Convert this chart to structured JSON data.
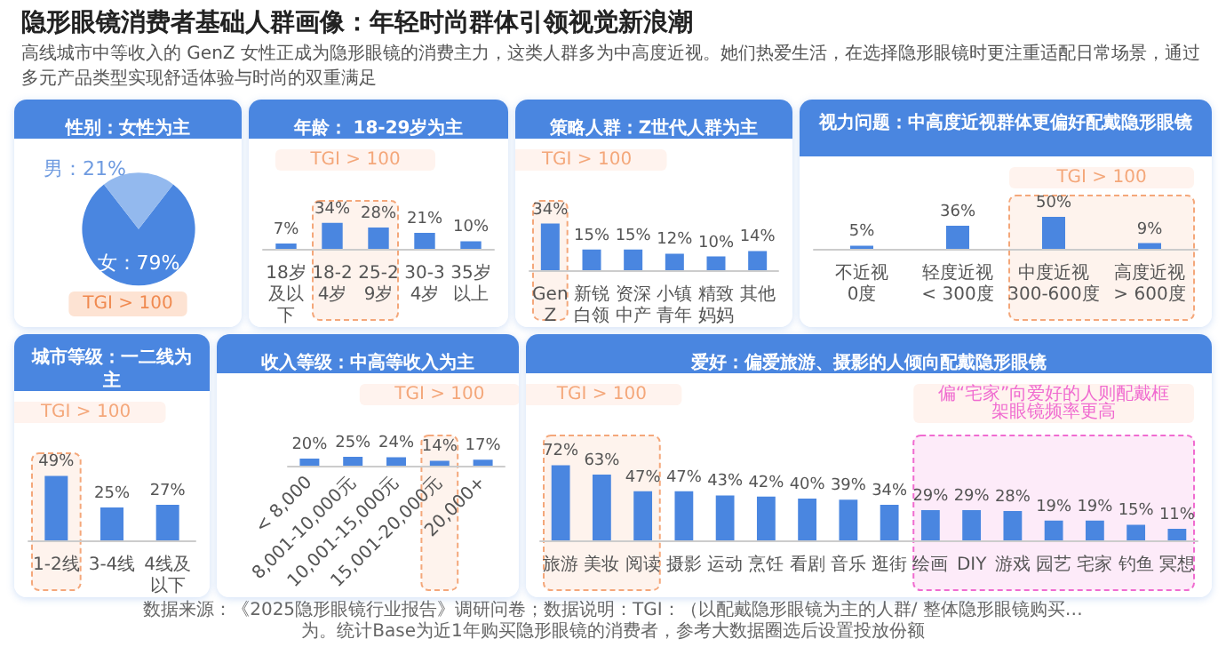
{
  "chart_data": [
    {
      "type": "other",
      "title": "隐形眼镜消费者基础人群画像：年轻时尚群体引领视觉新浪潮",
      "subtitle": "高线城市中等收入的 GenZ 女性正成为隐形眼镜的消费主力，这类人群多为中高度近视。她们热爱生活，在选择隐形眼镜时更注重适配日常场景，通过多元产品类型实现舒适体验与时尚的双重满足",
      "annotations": [
        "数据来源：《2025隐形眼镜行业报告》调研问卷；数据说明：TGI：（以配戴隐形眼镜为主的人群/ 整体隐形眼镜购买…",
        "为。统计Base为近1年购买隐形眼镜的消费者，参考大数据圈选后设置投放份额"
      ]
    },
    {
      "type": "pie",
      "title": "性别：女性为主",
      "categories": [
        "女",
        "男"
      ],
      "values": [
        79,
        21
      ],
      "colors": [
        "#4a86e0",
        "#93b9ee"
      ],
      "value_labels": [
        "79%",
        "21%"
      ],
      "annotations": [
        "TGI > 100"
      ]
    },
    {
      "type": "bar",
      "title": "年龄： 18-29岁为主",
      "categories": [
        "18岁及以下",
        "18-24岁",
        "25-29岁",
        "30-34岁",
        "35岁以上"
      ],
      "values": [
        7,
        34,
        28,
        21,
        10
      ],
      "color": "#4a86e0",
      "value_labels": [
        "7%",
        "34%",
        "28%",
        "21%",
        "10%"
      ],
      "bands": [
        {
          "axis": "x",
          "from": "18-24岁",
          "to": "25-29岁",
          "label": "TGI > 100",
          "color": "#f4a77a"
        }
      ]
    },
    {
      "type": "bar",
      "title": "策略人群：Z世代人群为主",
      "categories": [
        "GenZ",
        "新锐白领",
        "资深中产",
        "小镇青年",
        "精致妈妈",
        "其他"
      ],
      "values": [
        34,
        15,
        15,
        12,
        10,
        14
      ],
      "color": "#4a86e0",
      "value_labels": [
        "34%",
        "15%",
        "15%",
        "12%",
        "10%",
        "14%"
      ],
      "bands": [
        {
          "axis": "x",
          "from": "GenZ",
          "to": "GenZ",
          "label": "TGI > 100",
          "color": "#f4a77a"
        }
      ]
    },
    {
      "type": "bar",
      "title": "视力问题：中高度近视群体更偏好配戴隐形眼镜",
      "categories": [
        "不近视\n0度",
        "轻度近视\n< 300度",
        "中度近视\n300-600度",
        "高度近视\n> 600度"
      ],
      "values": [
        5,
        36,
        50,
        9
      ],
      "color": "#4a86e0",
      "value_labels": [
        "5%",
        "36%",
        "50%",
        "9%"
      ],
      "bands": [
        {
          "axis": "x",
          "from": "中度近视\n300-600度",
          "to": "高度近视\n> 600度",
          "label": "TGI > 100",
          "color": "#f4a77a"
        }
      ]
    },
    {
      "type": "bar",
      "title": "城市等级：一二线为主",
      "categories": [
        "1-2线",
        "3-4线",
        "4线及以下"
      ],
      "values": [
        49,
        25,
        27
      ],
      "color": "#4a86e0",
      "value_labels": [
        "49%",
        "25%",
        "27%"
      ],
      "bands": [
        {
          "axis": "x",
          "from": "1-2线",
          "to": "1-2线",
          "label": "TGI > 100",
          "color": "#f4a77a"
        }
      ]
    },
    {
      "type": "bar",
      "title": "收入等级：中高等收入为主",
      "categories": [
        "< 8,000",
        "8,001-10,000元",
        "10,001-15,000元",
        "15,001-20,000元",
        "20,000+"
      ],
      "values": [
        20,
        25,
        24,
        14,
        17
      ],
      "color": "#4a86e0",
      "value_labels": [
        "20%",
        "25%",
        "24%",
        "14%",
        "17%"
      ],
      "bands": [
        {
          "axis": "x",
          "from": "15,001-20,000元",
          "to": "15,001-20,000元",
          "label": "TGI > 100",
          "color": "#f4a77a"
        }
      ]
    },
    {
      "type": "bar",
      "title": "爱好：偏爱旅游、摄影的人倾向配戴隐形眼镜",
      "categories": [
        "旅游",
        "美妆",
        "阅读",
        "摄影",
        "运动",
        "烹饪",
        "看剧",
        "音乐",
        "逛街",
        "绘画",
        "DIY",
        "游戏",
        "园艺",
        "宅家",
        "钓鱼",
        "冥想"
      ],
      "values": [
        72,
        63,
        47,
        47,
        43,
        42,
        40,
        39,
        34,
        29,
        29,
        28,
        19,
        19,
        15,
        11
      ],
      "color": "#4a86e0",
      "value_labels": [
        "72%",
        "63%",
        "47%",
        "47%",
        "43%",
        "42%",
        "40%",
        "39%",
        "34%",
        "29%",
        "29%",
        "28%",
        "19%",
        "19%",
        "15%",
        "11%"
      ],
      "bands": [
        {
          "axis": "x",
          "from": "旅游",
          "to": "阅读",
          "label": "TGI > 100",
          "color": "#f4a77a"
        },
        {
          "axis": "x",
          "from": "绘画",
          "to": "冥想",
          "label": "偏“宅家”向爱好的人则配戴框架眼镜频率更高",
          "color": "#f06bd0"
        }
      ]
    }
  ]
}
